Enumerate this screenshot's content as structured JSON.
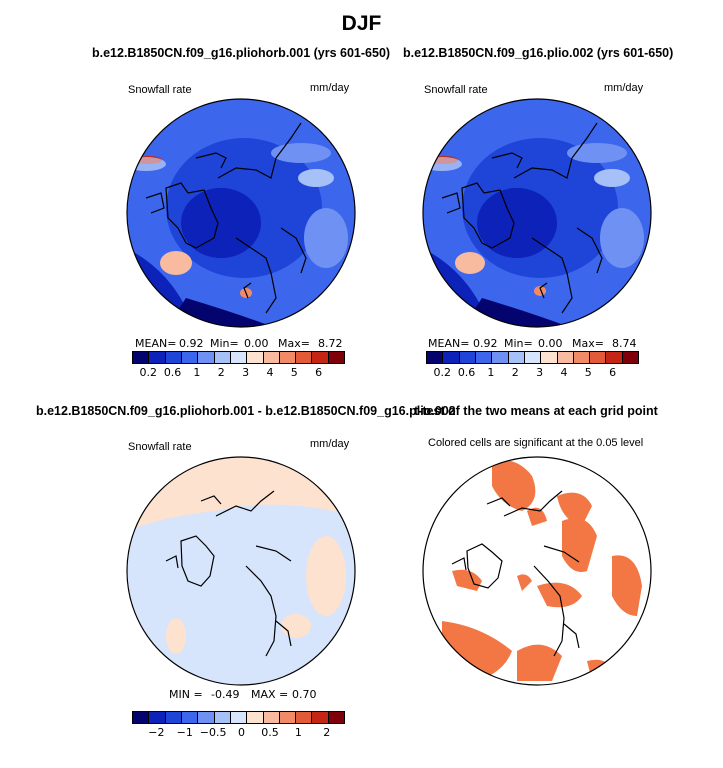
{
  "main_title": "DJF",
  "colors": {
    "snow_scale": [
      "#04046e",
      "#0c22b8",
      "#1e45d8",
      "#3c66ec",
      "#6f91f4",
      "#a6c0f8",
      "#d6e4fc",
      "#fde2d0",
      "#f9bba0",
      "#f18a66",
      "#e35a38",
      "#c42514",
      "#80000a"
    ],
    "diff_scale": [
      "#04046e",
      "#0c22b8",
      "#1e45d8",
      "#3c66ec",
      "#6f91f4",
      "#a6c0f8",
      "#d6e4fc",
      "#fde2d0",
      "#f9bba0",
      "#f18a66",
      "#e35a38",
      "#c42514",
      "#80000a"
    ],
    "significance": "#f37744"
  },
  "chart_data": [
    {
      "type": "heatmap",
      "panel": "top-left",
      "title": "b.e12.B1850CN.f09_g16.pliohorb.001 (yrs 601-650)",
      "left_label": "Snowfall rate",
      "right_label": "mm/day",
      "stats": {
        "mean": "0.92",
        "min": "0.00",
        "max": "8.72"
      },
      "colorbar_ticks": [
        "0.2",
        "0.6",
        "1",
        "2",
        "3",
        "4",
        "5",
        "6"
      ]
    },
    {
      "type": "heatmap",
      "panel": "top-right",
      "title": "b.e12.B1850CN.f09_g16.plio.002 (yrs 601-650)",
      "left_label": "Snowfall rate",
      "right_label": "mm/day",
      "stats": {
        "mean": "0.92",
        "min": "0.00",
        "max": "8.74"
      },
      "colorbar_ticks": [
        "0.2",
        "0.6",
        "1",
        "2",
        "3",
        "4",
        "5",
        "6"
      ]
    },
    {
      "type": "heatmap",
      "panel": "bottom-left",
      "title": "b.e12.B1850CN.f09_g16.pliohorb.001 - b.e12.B1850CN.f09_g16.plio.002",
      "left_label": "Snowfall rate",
      "right_label": "mm/day",
      "stats": {
        "min": "-0.49",
        "max": "0.70"
      },
      "colorbar_ticks": [
        "−2",
        "−1",
        "−0.5",
        "0",
        "0.5",
        "1",
        "2"
      ]
    },
    {
      "type": "heatmap",
      "panel": "bottom-right",
      "title": "t-test of the two means at each grid point",
      "left_label": "Colored cells are significant at the 0.05 level"
    }
  ],
  "labels": {
    "mean": "MEAN=",
    "min": "Min=",
    "max": "Max=",
    "min_caps": "MIN =",
    "max_caps": "MAX ="
  }
}
